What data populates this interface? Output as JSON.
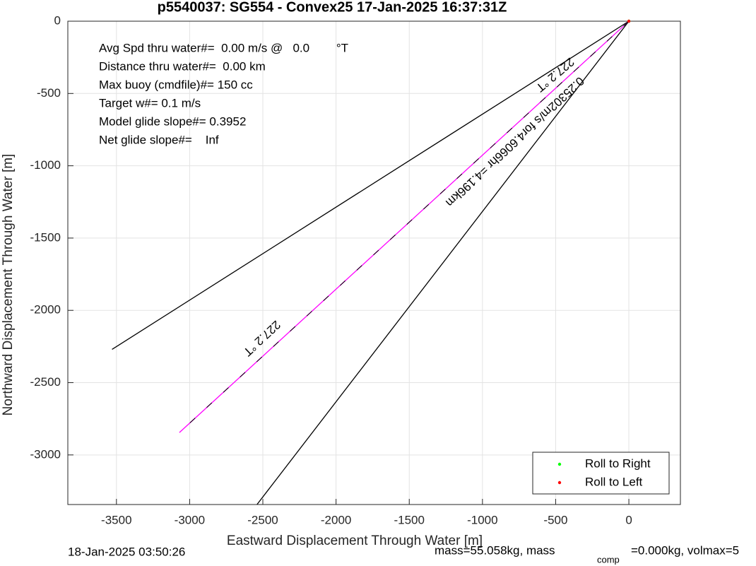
{
  "chart_data": {
    "type": "line",
    "title": "p5540037: SG554 - Convex25 17-Jan-2025 16:37:31Z",
    "xlabel": "Eastward Displacement Through Water [m]",
    "ylabel": "Northward Displacement Through Water [m]",
    "xlim": [
      -3832,
      352
    ],
    "ylim": [
      -3343,
      0
    ],
    "xticks": [
      -3500,
      -3000,
      -2500,
      -2000,
      -1500,
      -1000,
      -500,
      0
    ],
    "yticks": [
      0,
      -500,
      -1000,
      -1500,
      -2000,
      -2500,
      -3000
    ],
    "grid": true,
    "legend": "lower right",
    "series": [
      {
        "color": "#000000",
        "x": [
          0,
          -3530
        ],
        "y": [
          0,
          -2270
        ]
      },
      {
        "color": "#000000",
        "x": [
          0,
          -2540
        ],
        "y": [
          0,
          -3343
        ]
      },
      {
        "color": "#ff00ff",
        "dash_color": "#000000",
        "x": [
          0,
          -3070
        ],
        "y": [
          0,
          -2845
        ]
      },
      {
        "name": "Roll to Right",
        "color": "#00ff00",
        "x": [
          0
        ],
        "y": [
          0
        ]
      },
      {
        "name": "Roll to Left",
        "color": "#ff0000",
        "x": [
          0
        ],
        "y": [
          0
        ]
      }
    ],
    "annotations": [
      "227.2 °T",
      "227.2 °T",
      "0.25302m/s for4.6066hr =4.196km"
    ],
    "info": [
      "Avg Spd thru water#=  0.00 m/s @   0.0        °T",
      "Distance thru water#=  0.00 km",
      "Max buoy (cmdfile)#= 150 cc",
      "Target w#= 0.1 m/s",
      "Model glide slope#= 0.3952",
      "Net glide slope#=    Inf"
    ],
    "footer_left": "18-Jan-2025 03:50:26",
    "footer_right": [
      "mass=55.058kg, mass",
      "comp",
      "=0.000kg, volmax=5"
    ]
  }
}
